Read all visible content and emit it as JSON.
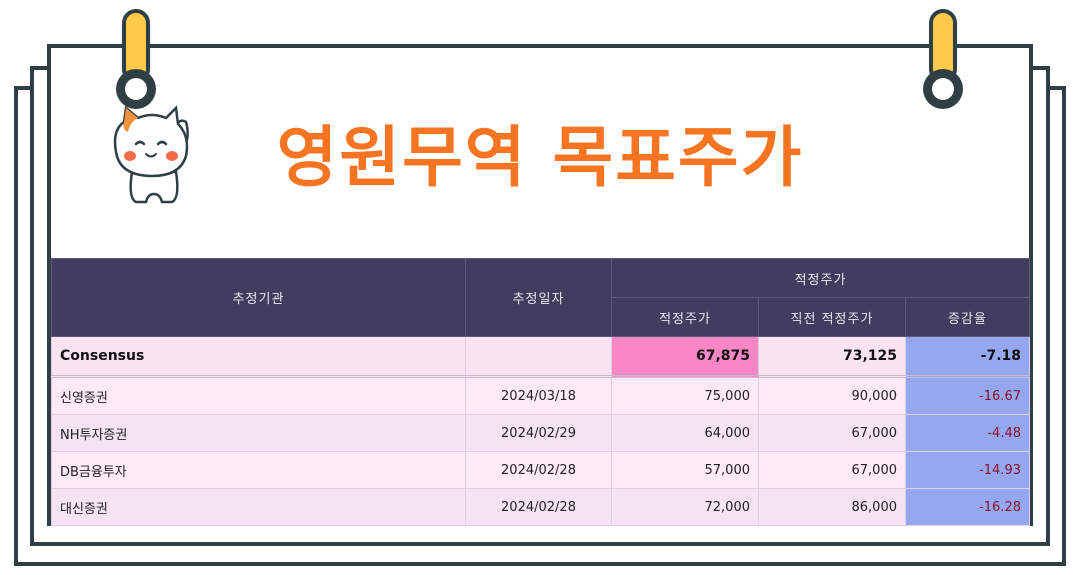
{
  "title": "영원무역 목표주가",
  "table": {
    "headers": {
      "agency": "추정기관",
      "date": "추정일자",
      "group": "적정주가",
      "target": "적정주가",
      "prev": "직전 적정주가",
      "change": "증감율"
    },
    "consensus": {
      "name": "Consensus",
      "date": "",
      "target": "67,875",
      "prev": "73,125",
      "change": "-7.18"
    },
    "rows": [
      {
        "name": "신영증권",
        "date": "2024/03/18",
        "target": "75,000",
        "prev": "90,000",
        "change": "-16.67"
      },
      {
        "name": "NH투자증권",
        "date": "2024/02/29",
        "target": "64,000",
        "prev": "67,000",
        "change": "-4.48"
      },
      {
        "name": "DB금융투자",
        "date": "2024/02/28",
        "target": "57,000",
        "prev": "67,000",
        "change": "-14.93"
      },
      {
        "name": "대신증권",
        "date": "2024/02/28",
        "target": "72,000",
        "prev": "86,000",
        "change": "-16.28"
      }
    ]
  },
  "colors": {
    "title": "#f77522",
    "header_bg": "#403d5e",
    "highlight": "#fb86c5",
    "change_bg": "#94a7ef",
    "frame": "#2f3f44",
    "clip": "#ffc949"
  },
  "icons": {
    "mascot": "cat-mascot-icon",
    "clips": "binder-clip-icon"
  }
}
